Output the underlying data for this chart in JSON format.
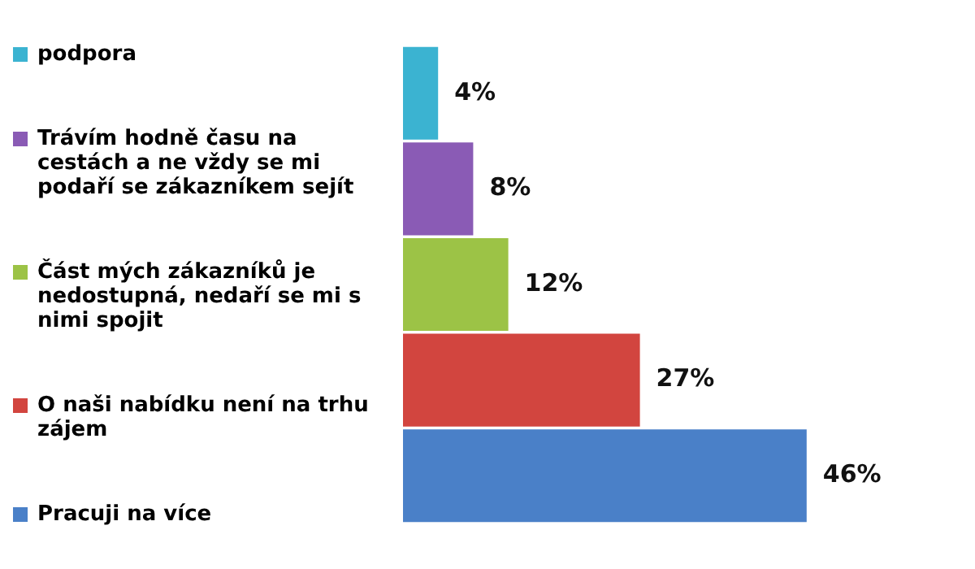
{
  "chart_data": {
    "type": "bar",
    "orientation": "horizontal",
    "stacked": true,
    "legend": "left",
    "categories": [
      null,
      null,
      null,
      null,
      null
    ],
    "series": [
      {
        "name": "podpora",
        "color": "#3bb3d1",
        "values": [
          4,
          null,
          null,
          null,
          null
        ],
        "value_labels": [
          "4%",
          null,
          null,
          null,
          null
        ]
      },
      {
        "name": "Trávím hodně času na cestách a ne vždy se mi podaří se zákazníkem sejít",
        "color": "#8a5bb5",
        "values": [
          null,
          8,
          null,
          null,
          null
        ],
        "value_labels": [
          null,
          "8%",
          null,
          null,
          null
        ]
      },
      {
        "name": "Část mých zákazníků je nedostupná, nedaří se mi s nimi spojit",
        "color": "#9cc346",
        "values": [
          null,
          null,
          12,
          null,
          null
        ],
        "value_labels": [
          null,
          null,
          "12%",
          null,
          null
        ]
      },
      {
        "name": "O naši nabídku není na trhu zájem",
        "color": "#d2453f",
        "values": [
          null,
          null,
          null,
          27,
          null
        ],
        "value_labels": [
          null,
          null,
          null,
          "27%",
          null
        ]
      },
      {
        "name": "Pracuji na více",
        "color": "#4a80c8",
        "values": [
          null,
          null,
          null,
          null,
          46
        ],
        "value_labels": [
          null,
          null,
          null,
          null,
          "46%"
        ]
      }
    ]
  }
}
